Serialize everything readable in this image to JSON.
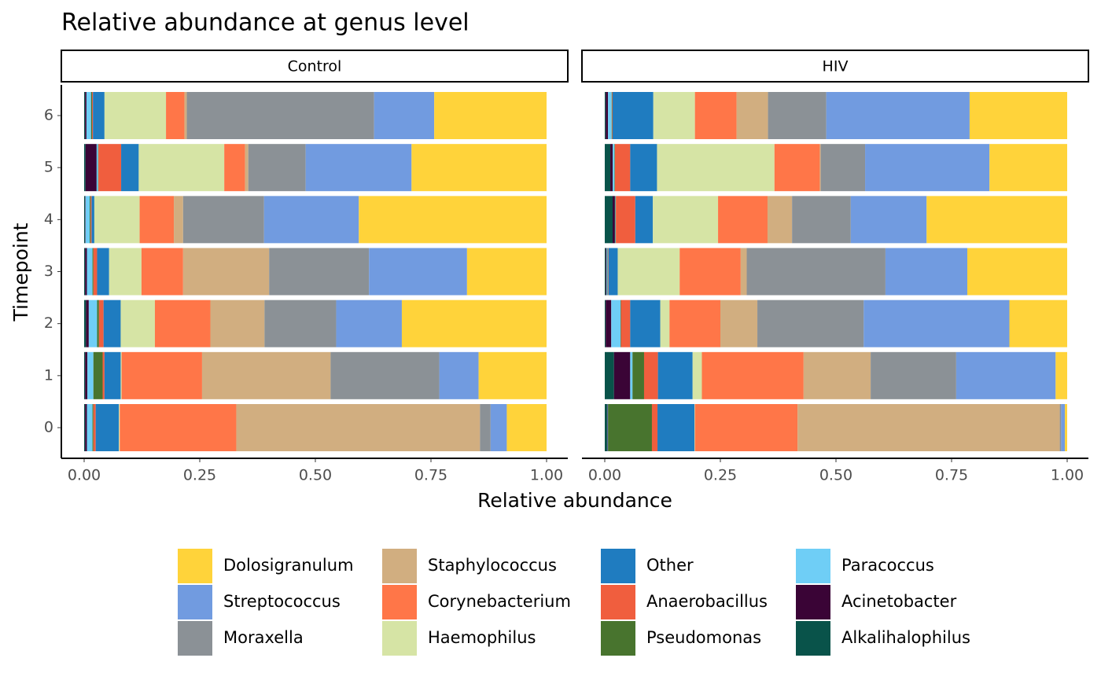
{
  "chart_data": {
    "type": "stacked_bar",
    "title": "Relative abundance at genus level",
    "x_label": "Relative abundance",
    "y_label": "Timepoint",
    "facets": [
      "Control",
      "HIV"
    ],
    "categories": [
      0,
      1,
      2,
      3,
      4,
      5,
      6
    ],
    "xlim": [
      0,
      1
    ],
    "xticks": [
      {
        "value": 0,
        "label": "0.00"
      },
      {
        "value": 0.25,
        "label": "0.25"
      },
      {
        "value": 0.5,
        "label": "0.50"
      },
      {
        "value": 0.75,
        "label": "0.75"
      },
      {
        "value": 1,
        "label": "1.00"
      }
    ],
    "series": [
      {
        "name": "Dolosigranulum",
        "color": "#FFD33A",
        "values": [
          [
            0.086,
            0.147,
            0.313,
            0.172,
            0.406,
            0.292,
            0.243
          ],
          [
            0.005,
            0.025,
            0.125,
            0.216,
            0.304,
            0.168,
            0.211
          ]
        ]
      },
      {
        "name": "Streptococcus",
        "color": "#719BE0",
        "values": [
          [
            0.035,
            0.085,
            0.142,
            0.212,
            0.205,
            0.229,
            0.13
          ],
          [
            0.008,
            0.215,
            0.315,
            0.177,
            0.164,
            0.269,
            0.31
          ]
        ]
      },
      {
        "name": "Moraxella",
        "color": "#8B9196",
        "values": [
          [
            0.023,
            0.235,
            0.155,
            0.216,
            0.175,
            0.124,
            0.405
          ],
          [
            0.003,
            0.185,
            0.23,
            0.3,
            0.127,
            0.096,
            0.126
          ]
        ]
      },
      {
        "name": "Staphylococcus",
        "color": "#D1AE80",
        "values": [
          [
            0.527,
            0.278,
            0.117,
            0.186,
            0.02,
            0.007,
            0.005
          ],
          [
            0.567,
            0.145,
            0.08,
            0.013,
            0.053,
            0.002,
            0.068
          ]
        ]
      },
      {
        "name": "Corynebacterium",
        "color": "#FF7648",
        "values": [
          [
            0.252,
            0.174,
            0.12,
            0.09,
            0.074,
            0.045,
            0.04
          ],
          [
            0.222,
            0.22,
            0.11,
            0.132,
            0.107,
            0.098,
            0.09
          ]
        ]
      },
      {
        "name": "Haemophilus",
        "color": "#D6E4A5",
        "values": [
          [
            0.002,
            0.002,
            0.074,
            0.07,
            0.098,
            0.185,
            0.133
          ],
          [
            0.001,
            0.02,
            0.02,
            0.134,
            0.141,
            0.254,
            0.09
          ]
        ]
      },
      {
        "name": "Other",
        "color": "#1F7CC0",
        "values": [
          [
            0.05,
            0.035,
            0.037,
            0.026,
            0.006,
            0.038,
            0.025
          ],
          [
            0.08,
            0.075,
            0.065,
            0.02,
            0.038,
            0.058,
            0.088
          ]
        ]
      },
      {
        "name": "Anaerobacillus",
        "color": "#F05E3E",
        "values": [
          [
            0.005,
            0.004,
            0.01,
            0.008,
            0.002,
            0.049,
            0.002
          ],
          [
            0.012,
            0.03,
            0.02,
            0.001,
            0.042,
            0.033,
            0.001
          ]
        ]
      },
      {
        "name": "Pseudomonas",
        "color": "#48742E",
        "values": [
          [
            0.002,
            0.02,
            0.004,
            0.002,
            0.002,
            0.001,
            0.002
          ],
          [
            0.095,
            0.025,
            0.001,
            0.001,
            0.001,
            0.001,
            0.001
          ]
        ]
      },
      {
        "name": "Paracoccus",
        "color": "#6FCEF6",
        "values": [
          [
            0.012,
            0.013,
            0.018,
            0.012,
            0.009,
            0.003,
            0.01
          ],
          [
            0.001,
            0.005,
            0.02,
            0.002,
            0.001,
            0.004,
            0.008
          ]
        ]
      },
      {
        "name": "Acinetobacter",
        "color": "#3A0436",
        "values": [
          [
            0.004,
            0.005,
            0.006,
            0.004,
            0.001,
            0.024,
            0.003
          ],
          [
            0.001,
            0.035,
            0.012,
            0.002,
            0.005,
            0.005,
            0.005
          ]
        ]
      },
      {
        "name": "Alkalihalophilus",
        "color": "#09534A",
        "values": [
          [
            0.002,
            0.002,
            0.004,
            0.002,
            0.002,
            0.003,
            0.002
          ],
          [
            0.005,
            0.02,
            0.002,
            0.002,
            0.017,
            0.012,
            0.002
          ]
        ]
      }
    ]
  }
}
